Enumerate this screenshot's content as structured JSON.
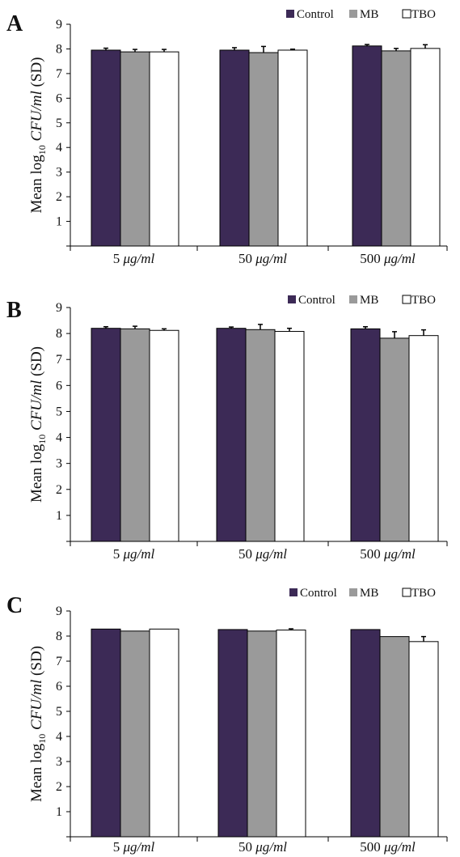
{
  "figure": {
    "colors": {
      "Control": "#3c2a56",
      "MB": "#9a9a9a",
      "TBO": "#ffffff",
      "axis": "#000000"
    }
  },
  "chart_data": [
    {
      "type": "bar",
      "panel_label": "A",
      "ylabel_parts": [
        "Mean log",
        "10",
        " ",
        "CFU/ml",
        " (SD)"
      ],
      "categories": [
        {
          "num": "5",
          "unit": "μg/ml"
        },
        {
          "num": "50",
          "unit": "μg/ml"
        },
        {
          "num": "500",
          "unit": "μg/ml"
        }
      ],
      "series": [
        {
          "name": "Control",
          "values": [
            7.95,
            7.95,
            8.12
          ],
          "errors": [
            0.08,
            0.1,
            0.06
          ]
        },
        {
          "name": "MB",
          "values": [
            7.88,
            7.85,
            7.92
          ],
          "errors": [
            0.1,
            0.25,
            0.1
          ]
        },
        {
          "name": "TBO",
          "values": [
            7.88,
            7.95,
            8.02
          ],
          "errors": [
            0.1,
            0.04,
            0.15
          ]
        }
      ],
      "yticks": [
        1,
        2,
        3,
        4,
        5,
        6,
        7,
        8,
        9
      ],
      "ylim": [
        0,
        9
      ],
      "legend_position": "top-right",
      "grid": false
    },
    {
      "type": "bar",
      "panel_label": "B",
      "ylabel_parts": [
        "Mean log",
        "10",
        " ",
        "CFU/ml",
        " (SD)"
      ],
      "categories": [
        {
          "num": "5",
          "unit": "μg/ml"
        },
        {
          "num": "50",
          "unit": "μg/ml"
        },
        {
          "num": "500",
          "unit": "μg/ml"
        }
      ],
      "series": [
        {
          "name": "Control",
          "values": [
            8.2,
            8.2,
            8.18
          ],
          "errors": [
            0.06,
            0.05,
            0.08
          ]
        },
        {
          "name": "MB",
          "values": [
            8.18,
            8.15,
            7.82
          ],
          "errors": [
            0.1,
            0.2,
            0.25
          ]
        },
        {
          "name": "TBO",
          "values": [
            8.12,
            8.08,
            7.92
          ],
          "errors": [
            0.06,
            0.12,
            0.22
          ]
        }
      ],
      "yticks": [
        1,
        2,
        3,
        4,
        5,
        6,
        7,
        8,
        9
      ],
      "ylim": [
        0,
        9
      ],
      "legend_position": "top-right",
      "grid": false
    },
    {
      "type": "bar",
      "panel_label": "C",
      "ylabel_parts": [
        "Mean log",
        "10",
        " ",
        "CFU/ml",
        " (SD)"
      ],
      "categories": [
        {
          "num": "5",
          "unit": "μg/ml"
        },
        {
          "num": "50",
          "unit": "μg/ml"
        },
        {
          "num": "500",
          "unit": "μg/ml"
        }
      ],
      "series": [
        {
          "name": "Control",
          "values": [
            8.28,
            8.26,
            8.26
          ],
          "errors": [
            0.0,
            0.0,
            0.0
          ]
        },
        {
          "name": "MB",
          "values": [
            8.2,
            8.2,
            7.98
          ],
          "errors": [
            0.0,
            0.0,
            0.0
          ]
        },
        {
          "name": "TBO",
          "values": [
            8.28,
            8.24,
            7.78
          ],
          "errors": [
            0.0,
            0.05,
            0.2
          ]
        }
      ],
      "yticks": [
        1,
        2,
        3,
        4,
        5,
        6,
        7,
        8,
        9
      ],
      "ylim": [
        0,
        9
      ],
      "legend_position": "top-right",
      "grid": false
    }
  ]
}
